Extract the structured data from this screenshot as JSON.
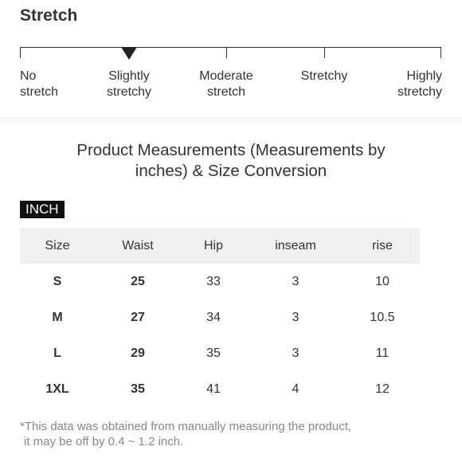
{
  "stretch": {
    "title": "Stretch",
    "selected": "Slightly stretchy",
    "levels": [
      {
        "line1": "No",
        "line2": "stretch"
      },
      {
        "line1": "Slightly",
        "line2": "stretchy"
      },
      {
        "line1": "Moderate",
        "line2": "stretch"
      },
      {
        "line1": "Stretchy",
        "line2": ""
      },
      {
        "line1": "Highly",
        "line2": "stretchy"
      }
    ]
  },
  "measurements": {
    "heading_line1": "Product Measurements (Measurements by",
    "heading_line2": "inches) & Size Conversion",
    "unit_label": "INCH",
    "columns": [
      "Size",
      "Waist",
      "Hip",
      "inseam",
      "rise"
    ],
    "rows": [
      [
        "S",
        "25",
        "33",
        "3",
        "10"
      ],
      [
        "M",
        "27",
        "34",
        "3",
        "10.5"
      ],
      [
        "L",
        "29",
        "35",
        "3",
        "11"
      ],
      [
        "1XL",
        "35",
        "41",
        "4",
        "12"
      ]
    ],
    "note_line1": "*This data was obtained from manually measuring the product,",
    "note_line2": "it may be off by 0.4 ~ 1.2 inch."
  }
}
